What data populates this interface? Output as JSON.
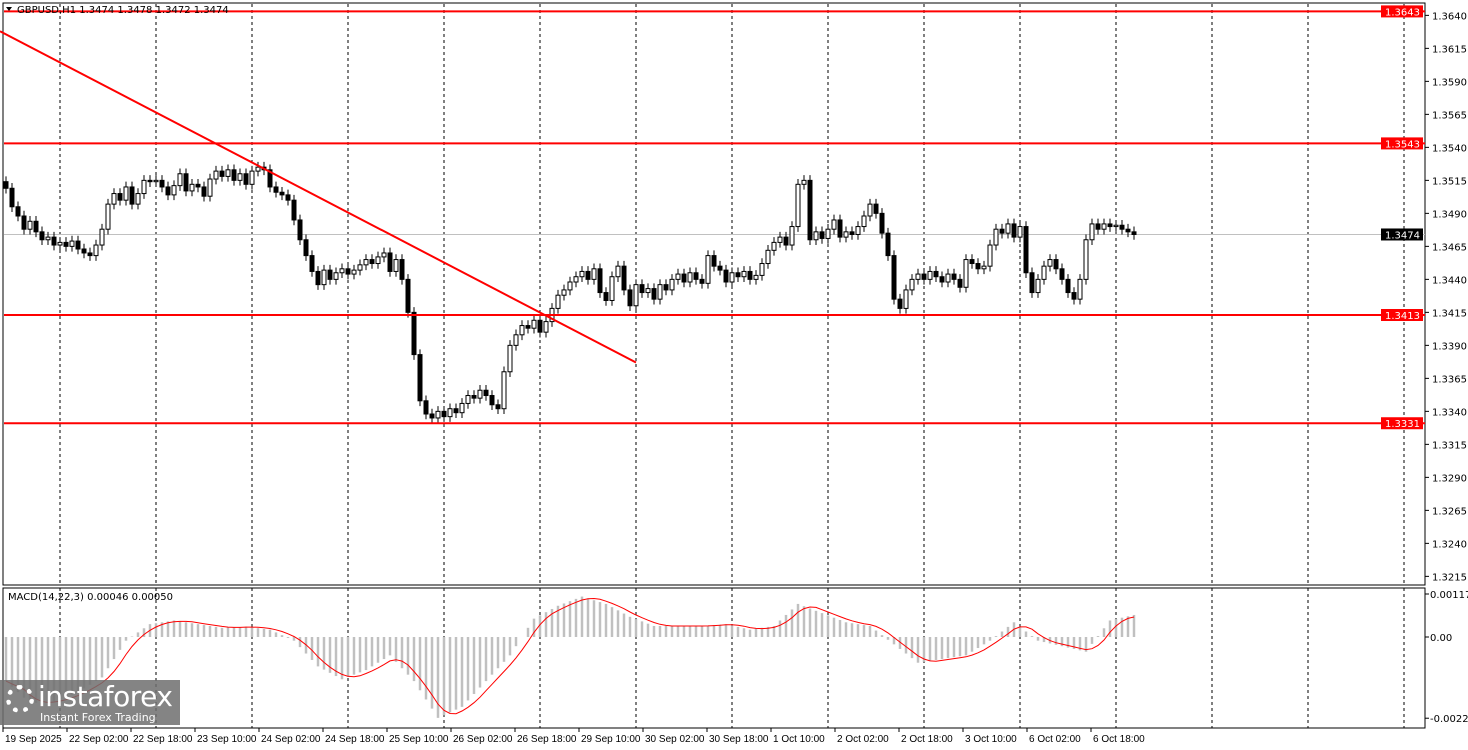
{
  "header": {
    "symbol_info": "GBPUSD,H1  1.3474 1.3478 1.3472 1.3474"
  },
  "macd_label": "MACD(14,22,3) 0.00046 0.00050",
  "logo": {
    "brand": "instaforex",
    "tagline": "Instant Forex Trading"
  },
  "colors": {
    "level_line": "#ff0000",
    "trend_line": "#ff0000",
    "candle": "#000000",
    "macd_hist": "#c0c0c0",
    "macd_signal": "#ff0000",
    "current_price": "#000000",
    "grid": "#000000"
  },
  "chart_data": {
    "type": "candlestick",
    "symbol": "GBPUSD",
    "timeframe": "H1",
    "ylim": [
      1.32,
      1.3652
    ],
    "grid": true,
    "price_ticks": [
      "1.3640",
      "1.3615",
      "1.3590",
      "1.3565",
      "1.3540",
      "1.3515",
      "1.3490",
      "1.3465",
      "1.3440",
      "1.3415",
      "1.3390",
      "1.3365",
      "1.3340",
      "1.3315",
      "1.3290",
      "1.3265",
      "1.3240",
      "1.3215"
    ],
    "time_labels": [
      "19 Sep 2025",
      "22 Sep 02:00",
      "22 Sep 18:00",
      "23 Sep 10:00",
      "24 Sep 02:00",
      "24 Sep 18:00",
      "25 Sep 10:00",
      "26 Sep 02:00",
      "26 Sep 18:00",
      "29 Sep 10:00",
      "30 Sep 02:00",
      "30 Sep 18:00",
      "1 Oct 10:00",
      "2 Oct 02:00",
      "2 Oct 18:00",
      "3 Oct 10:00",
      "6 Oct 02:00",
      "6 Oct 18:00"
    ],
    "closes": [
      1.3509,
      1.3495,
      1.3488,
      1.3478,
      1.3484,
      1.3476,
      1.347,
      1.3472,
      1.3466,
      1.3468,
      1.3465,
      1.3469,
      1.3463,
      1.346,
      1.3458,
      1.3466,
      1.3478,
      1.3497,
      1.3505,
      1.35,
      1.351,
      1.3497,
      1.3505,
      1.3515,
      1.3514,
      1.3515,
      1.351,
      1.3504,
      1.3511,
      1.352,
      1.3507,
      1.3512,
      1.351,
      1.3503,
      1.3516,
      1.3522,
      1.3518,
      1.3523,
      1.3515,
      1.352,
      1.3512,
      1.3522,
      1.3525,
      1.3523,
      1.351,
      1.3506,
      1.3504,
      1.35,
      1.3485,
      1.347,
      1.3458,
      1.3446,
      1.3436,
      1.3447,
      1.344,
      1.3445,
      1.3448,
      1.3444,
      1.3447,
      1.3451,
      1.3455,
      1.3452,
      1.3457,
      1.346,
      1.3446,
      1.3455,
      1.344,
      1.3415,
      1.3383,
      1.3348,
      1.3338,
      1.3335,
      1.334,
      1.3336,
      1.3342,
      1.3339,
      1.3346,
      1.3352,
      1.335,
      1.3356,
      1.3352,
      1.3345,
      1.3342,
      1.337,
      1.339,
      1.3398,
      1.3405,
      1.3403,
      1.3409,
      1.34,
      1.3408,
      1.3418,
      1.3428,
      1.3432,
      1.3438,
      1.3442,
      1.3446,
      1.344,
      1.3448,
      1.343,
      1.3424,
      1.3442,
      1.345,
      1.3432,
      1.342,
      1.3436,
      1.343,
      1.3433,
      1.3425,
      1.3436,
      1.3432,
      1.344,
      1.3444,
      1.3438,
      1.3445,
      1.344,
      1.3437,
      1.3458,
      1.345,
      1.3447,
      1.3438,
      1.3445,
      1.3442,
      1.3446,
      1.344,
      1.3443,
      1.3452,
      1.3462,
      1.3468,
      1.3472,
      1.3466,
      1.348,
      1.3512,
      1.3515,
      1.347,
      1.3476,
      1.3471,
      1.3478,
      1.3485,
      1.3472,
      1.3476,
      1.3474,
      1.348,
      1.3488,
      1.3497,
      1.349,
      1.3475,
      1.3458,
      1.3425,
      1.3418,
      1.3432,
      1.344,
      1.3444,
      1.344,
      1.3446,
      1.3442,
      1.3438,
      1.3444,
      1.344,
      1.3434,
      1.3455,
      1.3452,
      1.3448,
      1.345,
      1.3466,
      1.3478,
      1.3475,
      1.3482,
      1.3472,
      1.348,
      1.3445,
      1.343,
      1.344,
      1.345,
      1.3455,
      1.3448,
      1.344,
      1.343,
      1.3425,
      1.344,
      1.347,
      1.3482,
      1.3478,
      1.3482,
      1.348,
      1.3481,
      1.3478,
      1.3476,
      1.3474
    ],
    "current_price": {
      "value": 1.3474,
      "label": "1.3474"
    },
    "levels": [
      {
        "value": 1.3643,
        "label": "1.3643"
      },
      {
        "value": 1.3543,
        "label": "1.3543"
      },
      {
        "value": 1.3413,
        "label": "1.3413"
      },
      {
        "value": 1.3331,
        "label": "1.3331"
      }
    ],
    "trend_line": {
      "start_bar": 0,
      "start_price": 1.3628,
      "end_bar": 105,
      "end_price": 1.3377
    },
    "macd": {
      "params": "14,22,3",
      "ylim": [
        -0.00221,
        0.00117
      ],
      "ticks": [
        "0.00117",
        "0.00",
        "-0.00221"
      ],
      "histogram_every_4_bars": [
        -0.0012,
        -0.0018,
        -0.00175,
        -0.0015,
        -0.0011,
        -0.0001,
        0.00035,
        0.00045,
        0.00035,
        0.00025,
        0.00028,
        0.0002,
        -0.0001,
        -0.0008,
        -0.00115,
        -0.0009,
        -0.0005,
        -0.0012,
        -0.0022,
        -0.0019,
        -0.0012,
        -0.0005,
        0.0005,
        0.00085,
        0.0011,
        0.0009,
        0.00055,
        0.0003,
        0.0003,
        0.0003,
        0.00035,
        0.0002,
        0.0003,
        0.0009,
        0.00065,
        0.0004,
        0.0003,
        -0.0002,
        -0.0007,
        -0.0006,
        -0.0005,
        -0.0001,
        0.0004,
        -0.0001,
        -0.00025,
        -0.0004,
        0.00045,
        0.0006
      ]
    }
  }
}
